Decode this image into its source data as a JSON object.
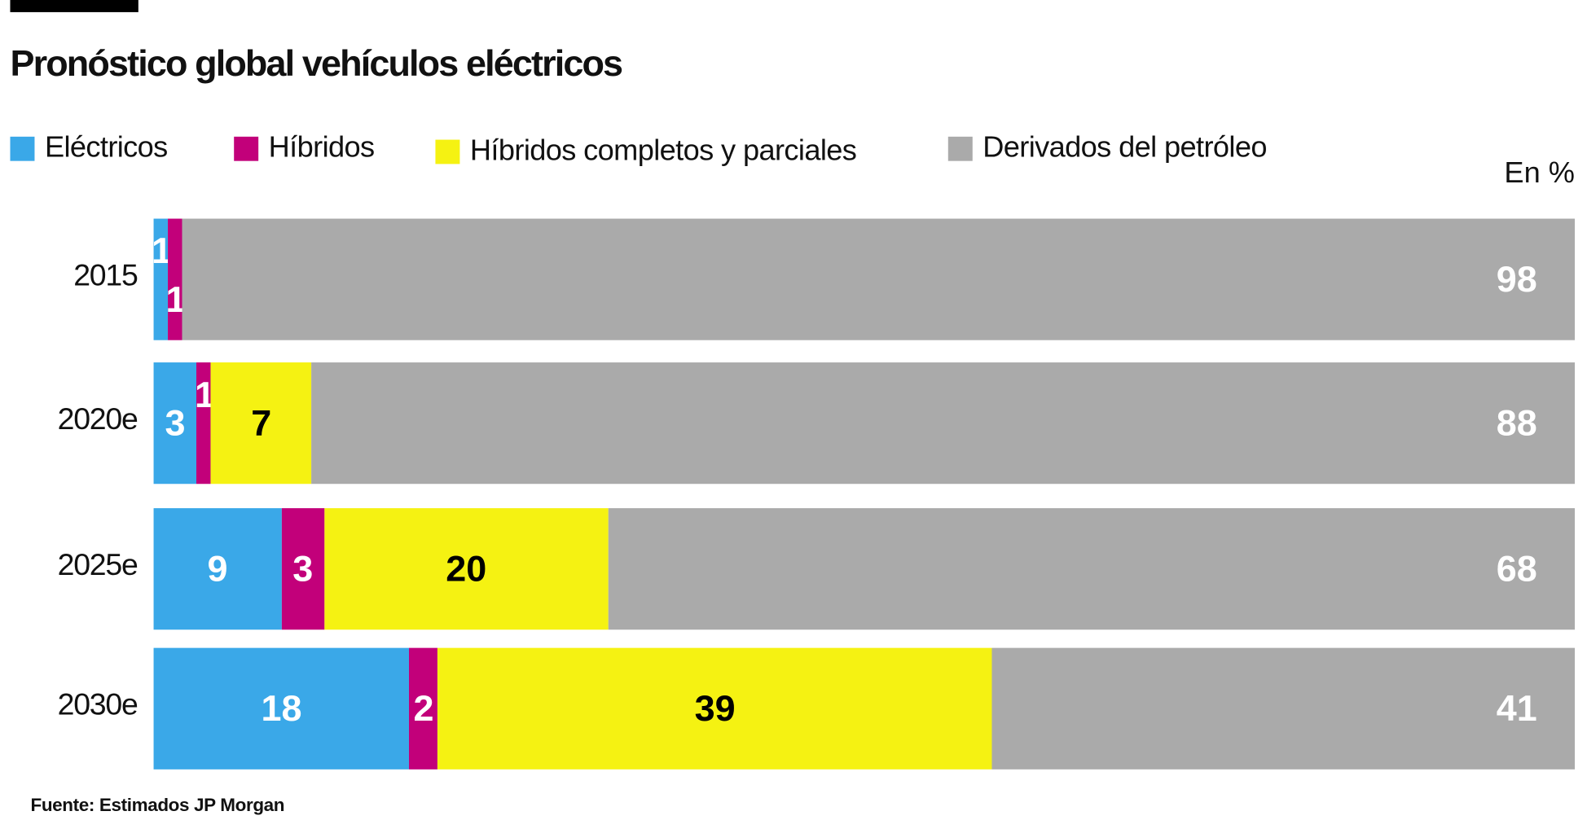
{
  "title": "Pronóstico global vehículos eléctricos",
  "unit": "En %",
  "source": "Fuente: Estimados JP Morgan",
  "chart_data": {
    "type": "bar",
    "orientation": "horizontal",
    "stacked": true,
    "title": "Pronóstico global vehículos eléctricos",
    "categories": [
      "2015",
      "2020e",
      "2025e",
      "2030e"
    ],
    "series": [
      {
        "name": "Eléctricos",
        "color": "#3aa8e8",
        "label_color": "#ffffff",
        "values": [
          1,
          3,
          9,
          18
        ]
      },
      {
        "name": "Híbridos",
        "color": "#c2007a",
        "label_color": "#ffffff",
        "values": [
          1,
          1,
          3,
          2
        ]
      },
      {
        "name": "Híbridos completos y parciales",
        "color": "#f5f212",
        "label_color": "#000000",
        "values": [
          0,
          7,
          20,
          39
        ]
      },
      {
        "name": "Derivados del petróleo",
        "color": "#aaaaaa",
        "label_color": "#ffffff",
        "values": [
          98,
          88,
          68,
          41
        ]
      }
    ],
    "xlim": [
      0,
      100
    ],
    "grid": false,
    "legend": "top"
  }
}
